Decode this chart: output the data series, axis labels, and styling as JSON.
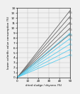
{
  "title": "",
  "xlabel": "dried sludge / dryness (%)",
  "ylabel": "lower calorific value consumption (%)",
  "xlim": [
    0,
    50
  ],
  "ylim": [
    0,
    14
  ],
  "xticks": [
    0,
    10,
    20,
    30,
    40,
    50
  ],
  "yticks": [
    0,
    1,
    2,
    3,
    4,
    5,
    6,
    7,
    8,
    9,
    10,
    11,
    12,
    13,
    14
  ],
  "background_color": "#f0f0f0",
  "dark_slopes": [
    0.272,
    0.248,
    0.224,
    0.2,
    0.176
  ],
  "dark_intercepts": [
    0.0,
    0.0,
    0.0,
    0.0,
    0.0
  ],
  "cyan_slopes": [
    0.18,
    0.158,
    0.136,
    0.114,
    0.092
  ],
  "cyan_intercepts": [
    0.0,
    0.0,
    0.0,
    0.0,
    0.0
  ],
  "dark_color": "#666666",
  "cyan_color": "#55CCEE",
  "line_width": 0.6,
  "dark_labels": [
    "90%",
    "80%",
    "75%",
    "70%",
    "65%"
  ],
  "cyan_labels": [
    "90%",
    "80%",
    "75%",
    "70%",
    "65%"
  ]
}
